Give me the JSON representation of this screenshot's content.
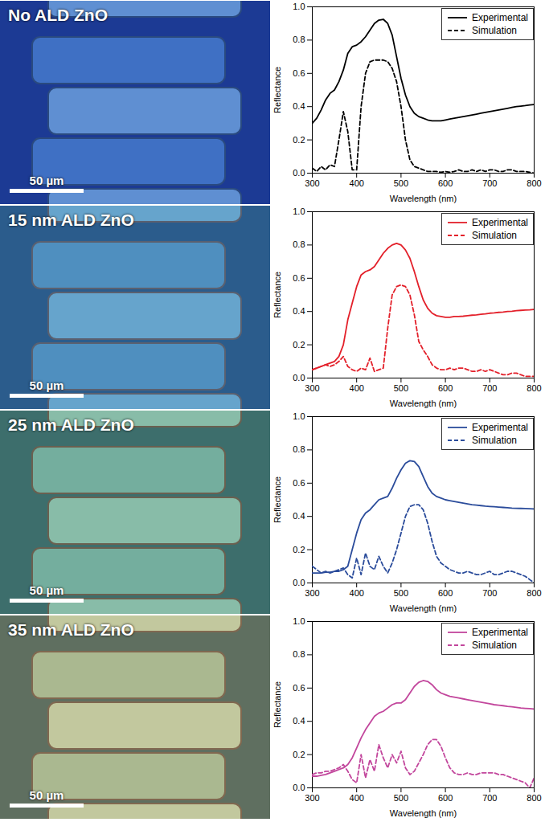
{
  "micrographs": [
    {
      "label": "No ALD ZnO",
      "scale_bar": "50 µm"
    },
    {
      "label": "15 nm ALD ZnO",
      "scale_bar": "50 µm"
    },
    {
      "label": "25 nm ALD ZnO",
      "scale_bar": "50 µm"
    },
    {
      "label": "35 nm ALD ZnO",
      "scale_bar": "50 µm"
    }
  ],
  "chart_data": [
    {
      "type": "line",
      "x_label": "Wavelength (nm)",
      "y_label": "Reflectance",
      "legend": "top-right",
      "xlim": [
        300,
        800
      ],
      "xticks": [
        300,
        400,
        500,
        600,
        700,
        800
      ],
      "ylim": [
        0,
        1
      ],
      "yticks": [
        {
          "value": 0,
          "label": "0.0"
        },
        0.2,
        0.4,
        0.6,
        0.8,
        {
          "value": 1,
          "label": "1.0"
        }
      ],
      "x": [
        300,
        310,
        320,
        330,
        340,
        350,
        360,
        370,
        380,
        390,
        400,
        410,
        420,
        430,
        440,
        450,
        460,
        470,
        480,
        490,
        500,
        510,
        520,
        530,
        540,
        550,
        560,
        570,
        580,
        590,
        600,
        610,
        620,
        630,
        640,
        650,
        660,
        670,
        680,
        690,
        700,
        710,
        720,
        730,
        740,
        750,
        760,
        770,
        780,
        790,
        800
      ],
      "series": [
        {
          "name": "Experimental",
          "color": "#000000",
          "line_style": "solid",
          "values": [
            0.3,
            0.33,
            0.38,
            0.44,
            0.48,
            0.5,
            0.55,
            0.62,
            0.72,
            0.76,
            0.77,
            0.79,
            0.82,
            0.86,
            0.9,
            0.92,
            0.925,
            0.9,
            0.83,
            0.7,
            0.57,
            0.47,
            0.4,
            0.36,
            0.34,
            0.33,
            0.32,
            0.315,
            0.315,
            0.315,
            0.32,
            0.325,
            0.33,
            0.335,
            0.34,
            0.345,
            0.35,
            0.355,
            0.36,
            0.365,
            0.37,
            0.375,
            0.38,
            0.385,
            0.39,
            0.395,
            0.4,
            0.403,
            0.406,
            0.41,
            0.413
          ]
        },
        {
          "name": "Simulation",
          "color": "#000000",
          "line_style": "dashed",
          "values": [
            0.03,
            0.01,
            0.04,
            0.02,
            0.05,
            0.04,
            0.2,
            0.37,
            0.25,
            0.02,
            0.02,
            0.4,
            0.6,
            0.67,
            0.68,
            0.68,
            0.68,
            0.67,
            0.63,
            0.55,
            0.4,
            0.2,
            0.08,
            0.04,
            0.03,
            0.02,
            0.01,
            0.01,
            0.01,
            0.005,
            0.01,
            0.005,
            0.01,
            0.02,
            0.01,
            0.01,
            0.02,
            0.01,
            0.02,
            0.01,
            0.02,
            0.02,
            0.01,
            0.01,
            0.02,
            0.02,
            0.01,
            0.01,
            0.01,
            0.005,
            0.0
          ]
        }
      ]
    },
    {
      "type": "line",
      "x_label": "Wavelength (nm)",
      "y_label": "Reflectance",
      "legend": "top-right",
      "xlim": [
        300,
        800
      ],
      "xticks": [
        300,
        400,
        500,
        600,
        700,
        800
      ],
      "ylim": [
        0,
        1
      ],
      "yticks": [
        {
          "value": 0,
          "label": "0.0"
        },
        0.2,
        0.4,
        0.6,
        0.8,
        {
          "value": 1,
          "label": "1.0"
        }
      ],
      "x": [
        300,
        310,
        320,
        330,
        340,
        350,
        360,
        370,
        380,
        390,
        400,
        410,
        420,
        430,
        440,
        450,
        460,
        470,
        480,
        490,
        500,
        510,
        520,
        530,
        540,
        550,
        560,
        570,
        580,
        590,
        600,
        610,
        620,
        630,
        640,
        650,
        660,
        670,
        680,
        690,
        700,
        710,
        720,
        730,
        740,
        750,
        760,
        770,
        780,
        790,
        800
      ],
      "series": [
        {
          "name": "Experimental",
          "color": "#e3202a",
          "line_style": "solid",
          "values": [
            0.05,
            0.06,
            0.07,
            0.08,
            0.09,
            0.1,
            0.13,
            0.2,
            0.35,
            0.45,
            0.55,
            0.62,
            0.64,
            0.65,
            0.67,
            0.71,
            0.75,
            0.78,
            0.8,
            0.81,
            0.8,
            0.77,
            0.72,
            0.64,
            0.55,
            0.47,
            0.42,
            0.39,
            0.375,
            0.37,
            0.365,
            0.365,
            0.37,
            0.37,
            0.372,
            0.375,
            0.378,
            0.38,
            0.383,
            0.386,
            0.39,
            0.392,
            0.395,
            0.397,
            0.4,
            0.402,
            0.405,
            0.407,
            0.409,
            0.41,
            0.413
          ]
        },
        {
          "name": "Simulation",
          "color": "#e3202a",
          "line_style": "dashed",
          "values": [
            0.05,
            0.06,
            0.07,
            0.08,
            0.07,
            0.08,
            0.1,
            0.13,
            0.07,
            0.05,
            0.04,
            0.06,
            0.05,
            0.12,
            0.04,
            0.05,
            0.06,
            0.3,
            0.5,
            0.55,
            0.56,
            0.55,
            0.5,
            0.38,
            0.22,
            0.17,
            0.13,
            0.08,
            0.06,
            0.05,
            0.05,
            0.06,
            0.05,
            0.06,
            0.06,
            0.05,
            0.04,
            0.04,
            0.05,
            0.04,
            0.05,
            0.04,
            0.03,
            0.02,
            0.02,
            0.03,
            0.03,
            0.02,
            0.01,
            0.01,
            0.01
          ]
        }
      ]
    },
    {
      "type": "line",
      "x_label": "Wavelength (nm)",
      "y_label": "Reflectance",
      "legend": "top-right",
      "xlim": [
        300,
        800
      ],
      "xticks": [
        300,
        400,
        500,
        600,
        700,
        800
      ],
      "ylim": [
        0,
        1
      ],
      "yticks": [
        {
          "value": 0,
          "label": "0.0"
        },
        0.2,
        0.4,
        0.6,
        0.8,
        {
          "value": 1,
          "label": "1.0"
        }
      ],
      "x": [
        300,
        310,
        320,
        330,
        340,
        350,
        360,
        370,
        380,
        390,
        400,
        410,
        420,
        430,
        440,
        450,
        460,
        470,
        480,
        490,
        500,
        510,
        520,
        530,
        540,
        550,
        560,
        570,
        580,
        590,
        600,
        610,
        620,
        630,
        640,
        650,
        660,
        670,
        680,
        690,
        700,
        710,
        720,
        730,
        740,
        750,
        760,
        770,
        780,
        790,
        800
      ],
      "series": [
        {
          "name": "Experimental",
          "color": "#2b4c9b",
          "line_style": "solid",
          "values": [
            0.06,
            0.06,
            0.06,
            0.065,
            0.065,
            0.07,
            0.07,
            0.08,
            0.1,
            0.2,
            0.3,
            0.38,
            0.42,
            0.44,
            0.47,
            0.5,
            0.51,
            0.52,
            0.57,
            0.63,
            0.68,
            0.72,
            0.735,
            0.73,
            0.7,
            0.64,
            0.58,
            0.54,
            0.52,
            0.51,
            0.5,
            0.495,
            0.49,
            0.485,
            0.48,
            0.475,
            0.47,
            0.468,
            0.465,
            0.462,
            0.46,
            0.458,
            0.456,
            0.454,
            0.452,
            0.45,
            0.449,
            0.448,
            0.447,
            0.446,
            0.445
          ]
        },
        {
          "name": "Simulation",
          "color": "#2b4c9b",
          "line_style": "dashed",
          "values": [
            0.1,
            0.08,
            0.06,
            0.07,
            0.06,
            0.07,
            0.08,
            0.09,
            0.05,
            0.03,
            0.15,
            0.05,
            0.18,
            0.1,
            0.08,
            0.16,
            0.1,
            0.06,
            0.12,
            0.2,
            0.3,
            0.4,
            0.46,
            0.47,
            0.47,
            0.44,
            0.36,
            0.25,
            0.16,
            0.12,
            0.1,
            0.08,
            0.07,
            0.06,
            0.06,
            0.07,
            0.06,
            0.05,
            0.05,
            0.06,
            0.07,
            0.05,
            0.05,
            0.06,
            0.07,
            0.07,
            0.06,
            0.05,
            0.04,
            0.02,
            0.0
          ]
        }
      ]
    },
    {
      "type": "line",
      "x_label": "Wavelength (nm)",
      "y_label": "Reflectance",
      "legend": "top-right",
      "xlim": [
        300,
        800
      ],
      "xticks": [
        300,
        400,
        500,
        600,
        700,
        800
      ],
      "ylim": [
        0,
        1
      ],
      "yticks": [
        {
          "value": 0,
          "label": "0.0"
        },
        0.2,
        0.4,
        0.6,
        0.8,
        {
          "value": 1,
          "label": "1.0"
        }
      ],
      "x": [
        300,
        310,
        320,
        330,
        340,
        350,
        360,
        370,
        380,
        390,
        400,
        410,
        420,
        430,
        440,
        450,
        460,
        470,
        480,
        490,
        500,
        510,
        520,
        530,
        540,
        550,
        560,
        570,
        580,
        590,
        600,
        610,
        620,
        630,
        640,
        650,
        660,
        670,
        680,
        690,
        700,
        710,
        720,
        730,
        740,
        750,
        760,
        770,
        780,
        790,
        800
      ],
      "series": [
        {
          "name": "Experimental",
          "color": "#c2469c",
          "line_style": "solid",
          "values": [
            0.07,
            0.07,
            0.075,
            0.08,
            0.09,
            0.1,
            0.11,
            0.12,
            0.14,
            0.18,
            0.24,
            0.3,
            0.35,
            0.39,
            0.43,
            0.45,
            0.46,
            0.48,
            0.5,
            0.51,
            0.51,
            0.53,
            0.57,
            0.61,
            0.635,
            0.645,
            0.64,
            0.62,
            0.59,
            0.57,
            0.56,
            0.55,
            0.545,
            0.54,
            0.535,
            0.53,
            0.525,
            0.52,
            0.515,
            0.51,
            0.505,
            0.5,
            0.497,
            0.494,
            0.49,
            0.487,
            0.484,
            0.48,
            0.478,
            0.476,
            0.474
          ]
        },
        {
          "name": "Simulation",
          "color": "#c2469c",
          "line_style": "dashed",
          "values": [
            0.08,
            0.09,
            0.09,
            0.1,
            0.1,
            0.11,
            0.12,
            0.14,
            0.1,
            0.05,
            0.03,
            0.2,
            0.06,
            0.17,
            0.1,
            0.26,
            0.18,
            0.12,
            0.2,
            0.15,
            0.22,
            0.12,
            0.08,
            0.1,
            0.15,
            0.2,
            0.26,
            0.29,
            0.29,
            0.25,
            0.18,
            0.12,
            0.09,
            0.08,
            0.08,
            0.09,
            0.08,
            0.08,
            0.09,
            0.09,
            0.09,
            0.09,
            0.08,
            0.08,
            0.07,
            0.06,
            0.05,
            0.04,
            0.03,
            0.0,
            0.06
          ]
        }
      ]
    }
  ]
}
